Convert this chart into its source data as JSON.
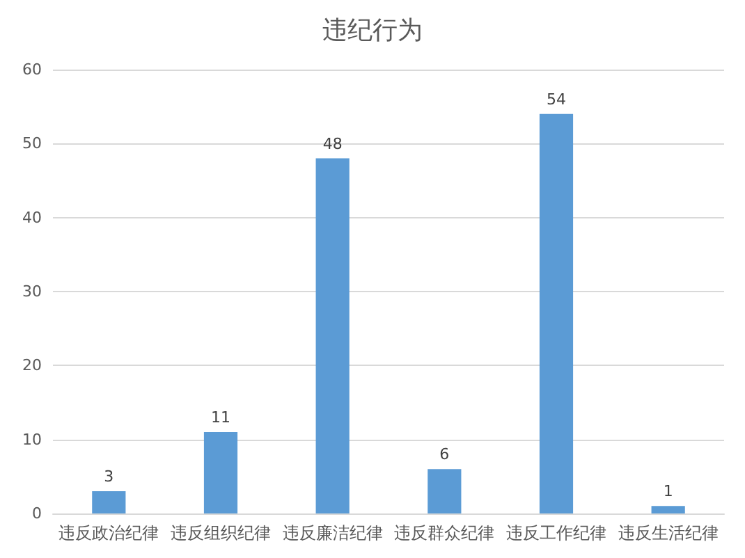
{
  "chart_data": {
    "type": "bar",
    "title": "违纪行为",
    "categories": [
      "违反政治纪律",
      "违反组织纪律",
      "违反廉洁纪律",
      "违反群众纪律",
      "违反工作纪律",
      "违反生活纪律"
    ],
    "values": [
      3,
      11,
      48,
      6,
      54,
      1
    ],
    "color": "#5b9bd5",
    "ylim": [
      0,
      60
    ],
    "yticks": [
      0,
      10,
      20,
      30,
      40,
      50,
      60
    ],
    "grid": "y",
    "data_labels": true
  }
}
